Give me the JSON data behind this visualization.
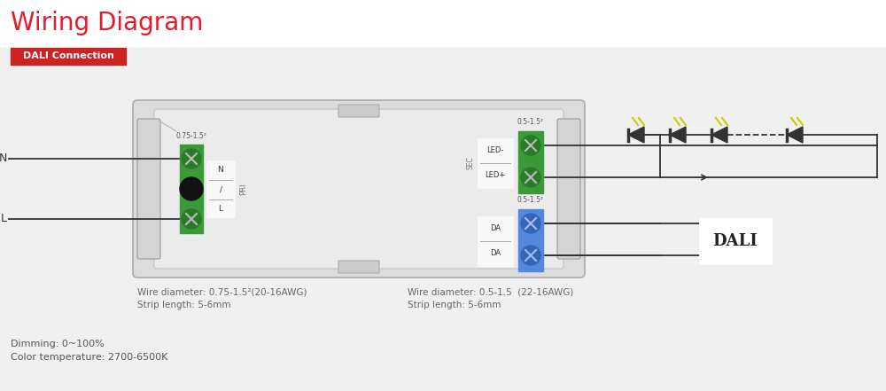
{
  "title": "Wiring Diagram",
  "title_color": "#e8192c",
  "title_fontsize": 20,
  "badge_text": "DALI Connection",
  "badge_bg": "#cc2222",
  "badge_fg": "#ffffff",
  "green_terminal": "#3a9a3a",
  "green_dark": "#2a7a2a",
  "blue_terminal": "#5588dd",
  "blue_dark": "#3366bb",
  "wire_color": "#333333",
  "box_outer_bg": "#e2e2e2",
  "box_inner_bg": "#eeeeee",
  "box_border": "#aaaaaa",
  "note1_line1": "Wire diameter: 0.75-1.5²(20-16AWG)",
  "note1_line2": "Strip length: 5-6mm",
  "note2_line1": "Wire diameter: 0.5-1.5  (22-16AWG)",
  "note2_line2": "Strip length: 5-6mm",
  "bottom_line1": "Dimming: 0~100%",
  "bottom_line2": "Color temperature: 2700-6500K",
  "label_N": "N",
  "label_L": "L",
  "label_PRI": "PRI",
  "label_N_term": "N",
  "label_slash": "/",
  "label_L_term": "L",
  "label_SEC": "SEC",
  "label_LED_minus": "LED-",
  "label_LED_plus": "LED+",
  "label_DA1": "DA",
  "label_DA2": "DA",
  "label_DALI": "DALI",
  "label_wire1": "0.75-1.5²",
  "label_wire2": "0.5-1.5²",
  "label_wire3": "0.5-1.5²",
  "bg_color": "#f0f0f0",
  "top_bg": "#ffffff"
}
